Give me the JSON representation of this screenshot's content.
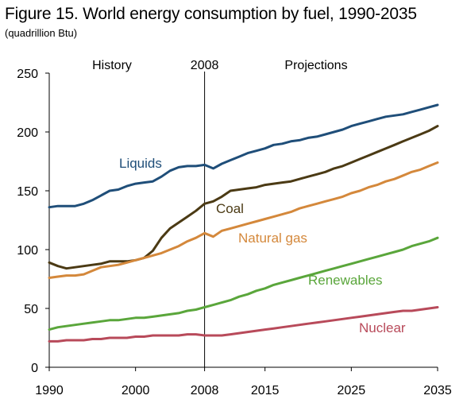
{
  "chart_data": {
    "type": "line",
    "title": "Figure 15. World energy consumption by fuel, 1990-2035",
    "subtitle": "(quadrillion Btu)",
    "xlabel": "",
    "ylabel": "",
    "xlim": [
      1990,
      2035
    ],
    "ylim": [
      0,
      250
    ],
    "x_ticks": [
      "1990",
      "2000",
      "2008",
      "2015",
      "2025",
      "2035"
    ],
    "y_ticks": [
      "0",
      "50",
      "100",
      "150",
      "200",
      "250"
    ],
    "grid": false,
    "divider": {
      "x": 2008,
      "label": "2008"
    },
    "period_labels": {
      "left": "History",
      "right": "Projections"
    },
    "x": [
      1990,
      1991,
      1992,
      1993,
      1994,
      1995,
      1996,
      1997,
      1998,
      1999,
      2000,
      2001,
      2002,
      2003,
      2004,
      2005,
      2006,
      2007,
      2008,
      2009,
      2010,
      2011,
      2012,
      2013,
      2014,
      2015,
      2016,
      2017,
      2018,
      2019,
      2020,
      2021,
      2022,
      2023,
      2024,
      2025,
      2026,
      2027,
      2028,
      2029,
      2030,
      2031,
      2032,
      2033,
      2034,
      2035
    ],
    "series": [
      {
        "name": "Liquids",
        "color": "#1f4e79",
        "values": [
          136,
          137,
          137,
          137,
          139,
          142,
          146,
          150,
          151,
          154,
          156,
          157,
          158,
          162,
          167,
          170,
          171,
          171,
          172,
          169,
          173,
          176,
          179,
          182,
          184,
          186,
          189,
          190,
          192,
          193,
          195,
          196,
          198,
          200,
          202,
          205,
          207,
          209,
          211,
          213,
          214,
          215,
          217,
          219,
          221,
          223
        ]
      },
      {
        "name": "Coal",
        "color": "#4b3a14",
        "values": [
          89,
          86,
          84,
          85,
          86,
          87,
          88,
          90,
          90,
          90,
          91,
          93,
          99,
          110,
          118,
          123,
          128,
          133,
          139,
          141,
          145,
          150,
          151,
          152,
          153,
          155,
          156,
          157,
          158,
          160,
          162,
          164,
          166,
          169,
          171,
          174,
          177,
          180,
          183,
          186,
          189,
          192,
          195,
          198,
          201,
          205
        ]
      },
      {
        "name": "Natural gas",
        "color": "#d4883b",
        "values": [
          76,
          77,
          78,
          78,
          79,
          82,
          85,
          86,
          87,
          89,
          91,
          93,
          95,
          97,
          100,
          103,
          107,
          110,
          114,
          111,
          116,
          118,
          120,
          122,
          124,
          126,
          128,
          130,
          132,
          135,
          137,
          139,
          141,
          143,
          145,
          148,
          150,
          153,
          155,
          158,
          160,
          163,
          166,
          168,
          171,
          174
        ]
      },
      {
        "name": "Renewables",
        "color": "#5aa63b",
        "values": [
          32,
          34,
          35,
          36,
          37,
          38,
          39,
          40,
          40,
          41,
          42,
          42,
          43,
          44,
          45,
          46,
          48,
          49,
          51,
          53,
          55,
          57,
          60,
          62,
          65,
          67,
          70,
          72,
          74,
          76,
          78,
          80,
          82,
          84,
          86,
          88,
          90,
          92,
          94,
          96,
          98,
          100,
          103,
          105,
          107,
          110
        ]
      },
      {
        "name": "Nuclear",
        "color": "#b84a5a",
        "values": [
          22,
          22,
          23,
          23,
          23,
          24,
          24,
          25,
          25,
          25,
          26,
          26,
          27,
          27,
          27,
          27,
          28,
          28,
          27,
          27,
          27,
          28,
          29,
          30,
          31,
          32,
          33,
          34,
          35,
          36,
          37,
          38,
          39,
          40,
          41,
          42,
          43,
          44,
          45,
          46,
          47,
          48,
          48,
          49,
          50,
          51
        ]
      }
    ]
  }
}
